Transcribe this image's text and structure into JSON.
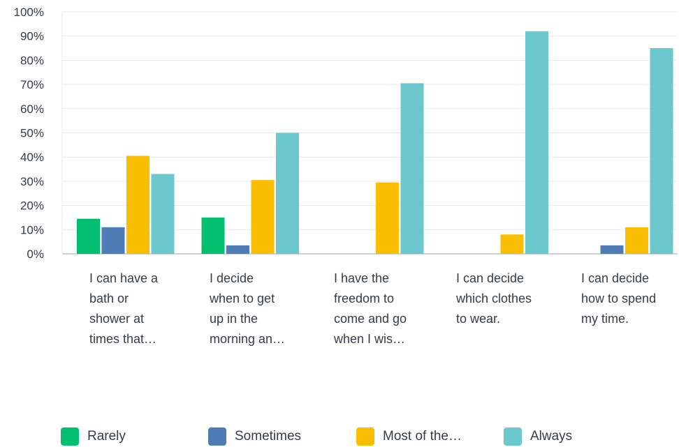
{
  "chart_data": {
    "type": "bar",
    "categories": [
      [
        "I can have a",
        "bath or",
        "shower at",
        "times that…"
      ],
      [
        "I decide",
        "when to get",
        "up in the",
        "morning an…"
      ],
      [
        "I have the",
        "freedom to",
        "come and go",
        "when I wis…"
      ],
      [
        "I can decide",
        "which clothes",
        "to wear."
      ],
      [
        "I can decide",
        "how to spend",
        "my time."
      ]
    ],
    "series": [
      {
        "name": "Rarely",
        "color": "#00bf6f",
        "values": [
          14.5,
          15,
          0,
          0,
          0
        ]
      },
      {
        "name": "Sometimes",
        "color": "#507cb6",
        "values": [
          11,
          3.5,
          0,
          0,
          3.5
        ]
      },
      {
        "name": "Most of the…",
        "color": "#f9be00",
        "values": [
          40.5,
          30.5,
          29.5,
          8,
          11
        ]
      },
      {
        "name": "Always",
        "color": "#6bc8cd",
        "values": [
          33,
          50,
          70.5,
          92,
          85
        ]
      }
    ],
    "yticks": [
      "0%",
      "10%",
      "20%",
      "30%",
      "40%",
      "50%",
      "60%",
      "70%",
      "80%",
      "90%",
      "100%"
    ],
    "ylim": [
      0,
      100
    ],
    "grid": true,
    "legend": "bottom"
  }
}
